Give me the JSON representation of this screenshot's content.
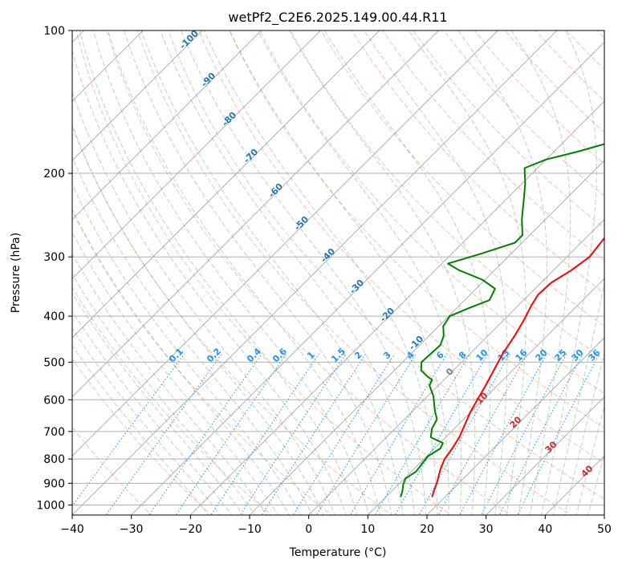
{
  "chart_data": {
    "type": "line",
    "title": "wetPf2_C2E6.2025.149.00.44.R11",
    "xlabel": "Temperature (°C)",
    "ylabel": "Pressure (hPa)",
    "xlim": [
      -40,
      50
    ],
    "ylim": [
      1050,
      100
    ],
    "y_scale": "log",
    "grid": true,
    "x_ticks": [
      -40,
      -30,
      -20,
      -10,
      0,
      10,
      20,
      30,
      40,
      50
    ],
    "y_ticks": [
      100,
      200,
      300,
      400,
      500,
      600,
      700,
      800,
      900,
      1000
    ],
    "colors": {
      "temperature": "#ff0000",
      "dewpoint": "#008000",
      "isotherm": "#808080",
      "dry_adiabat": "#ff7f50",
      "moist_adiabat": "#2e8b57",
      "mixing_ratio": "#1e90ff",
      "dry_label": "#1f77b4",
      "moist_label": "#d62728",
      "grid": "#b0b0b0"
    },
    "series": [
      {
        "key": "temperature",
        "points": [
          [
            17.8,
            962
          ],
          [
            17,
            930
          ],
          [
            16,
            890
          ],
          [
            14.5,
            840
          ],
          [
            13.5,
            800
          ],
          [
            13,
            760
          ],
          [
            12.3,
            720
          ],
          [
            11.2,
            680
          ],
          [
            10,
            640
          ],
          [
            9,
            600
          ],
          [
            8,
            560
          ],
          [
            6.8,
            520
          ],
          [
            5.5,
            480
          ],
          [
            4.5,
            440
          ],
          [
            3.5,
            410
          ],
          [
            2.2,
            380
          ],
          [
            1.5,
            360
          ],
          [
            1.7,
            340
          ],
          [
            3,
            320
          ],
          [
            3.8,
            300
          ],
          [
            3.3,
            280
          ],
          [
            2.8,
            260
          ],
          [
            3,
            240
          ],
          [
            4,
            220
          ],
          [
            5,
            200
          ],
          [
            6.3,
            180
          ],
          [
            7.8,
            160
          ],
          [
            9.5,
            150
          ],
          [
            10.5,
            140
          ],
          [
            11,
            130
          ],
          [
            12.3,
            120
          ],
          [
            14.5,
            112
          ],
          [
            17,
            106
          ],
          [
            20,
            100
          ]
        ]
      },
      {
        "key": "dewpoint",
        "points": [
          [
            12.5,
            962
          ],
          [
            11.8,
            935
          ],
          [
            10.8,
            905
          ],
          [
            10.2,
            880
          ],
          [
            10.8,
            850
          ],
          [
            10.5,
            820
          ],
          [
            10.2,
            790
          ],
          [
            11,
            760
          ],
          [
            10.5,
            740
          ],
          [
            7.5,
            720
          ],
          [
            6.2,
            690
          ],
          [
            5.5,
            660
          ],
          [
            3.5,
            630
          ],
          [
            1,
            590
          ],
          [
            -1.5,
            560
          ],
          [
            -2,
            545
          ],
          [
            -3.5,
            535
          ],
          [
            -5.5,
            520
          ],
          [
            -6.8,
            500
          ],
          [
            -6.5,
            460
          ],
          [
            -7.5,
            440
          ],
          [
            -9.2,
            420
          ],
          [
            -9.8,
            400
          ],
          [
            -8,
            385
          ],
          [
            -5.8,
            370
          ],
          [
            -6.8,
            350
          ],
          [
            -10.5,
            335
          ],
          [
            -16,
            320
          ],
          [
            -19,
            310
          ],
          [
            -15,
            295
          ],
          [
            -11.2,
            280
          ],
          [
            -11.2,
            270
          ],
          [
            -14,
            250
          ],
          [
            -17.3,
            225
          ],
          [
            -19.5,
            210
          ],
          [
            -22.2,
            195
          ],
          [
            -20,
            187
          ],
          [
            -16,
            180
          ],
          [
            -12,
            172
          ],
          [
            -11.5,
            165
          ],
          [
            -11,
            158
          ],
          [
            -9,
            150
          ],
          [
            -5.5,
            138
          ],
          [
            -3.5,
            128
          ],
          [
            -2,
            120
          ],
          [
            -1.5,
            115
          ],
          [
            0,
            104
          ],
          [
            0.5,
            100
          ]
        ]
      }
    ],
    "dry_adiabat_labels": [
      "-100",
      "-90",
      "-80",
      "-70",
      "-60",
      "-50",
      "-40",
      "-30",
      "-20",
      "-10"
    ],
    "moist_adiabat_labels": [
      "0",
      "10",
      "20",
      "30",
      "40"
    ],
    "mixing_ratio_labels": [
      "0.1",
      "0.2",
      "0.4",
      "0.6",
      "1",
      "1.5",
      "2",
      "3",
      "4",
      "6",
      "8",
      "10",
      "13",
      "16",
      "20",
      "25",
      "30",
      "36"
    ]
  }
}
